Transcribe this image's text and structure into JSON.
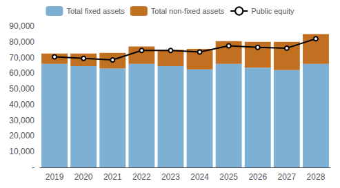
{
  "chart_data": {
    "type": "bar",
    "stacked": true,
    "categories": [
      "2019",
      "2020",
      "2021",
      "2022",
      "2023",
      "2024",
      "2025",
      "2026",
      "2027",
      "2028"
    ],
    "series": [
      {
        "name": "Total fixed assets",
        "type": "bar",
        "color": "#7EB0D5",
        "values": [
          66000,
          64500,
          63000,
          66000,
          64500,
          62500,
          66000,
          63500,
          62000,
          66000
        ]
      },
      {
        "name": "Total non-fixed assets",
        "type": "bar",
        "color": "#C07020",
        "values": [
          6500,
          8000,
          10000,
          11000,
          10500,
          13000,
          14500,
          16500,
          18000,
          19000
        ]
      },
      {
        "name": "Public equity",
        "type": "line",
        "color": "#000000",
        "values": [
          70500,
          69500,
          68500,
          74500,
          74500,
          73500,
          77500,
          76500,
          76000,
          82000
        ]
      }
    ],
    "ylim": [
      0,
      90000
    ],
    "yticks": [
      {
        "value": 0,
        "label": "-"
      },
      {
        "value": 10000,
        "label": "10,000"
      },
      {
        "value": 20000,
        "label": "20,000"
      },
      {
        "value": 30000,
        "label": "30,000"
      },
      {
        "value": 40000,
        "label": "40,000"
      },
      {
        "value": 50000,
        "label": "50,000"
      },
      {
        "value": 60000,
        "label": "60,000"
      },
      {
        "value": 70000,
        "label": "70,000"
      },
      {
        "value": 80000,
        "label": "80,000"
      },
      {
        "value": 90000,
        "label": "90,000"
      }
    ],
    "grid": false,
    "legend": "top"
  }
}
